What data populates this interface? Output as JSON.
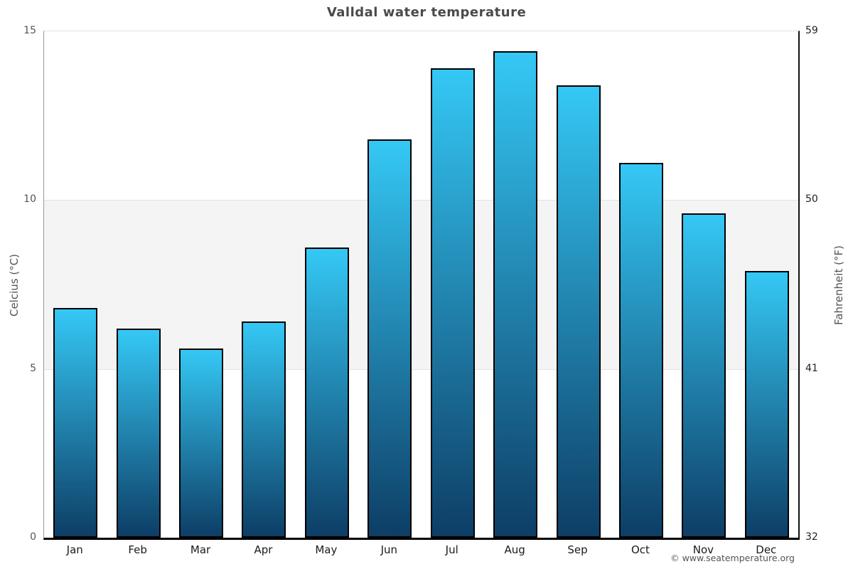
{
  "title": "Valldal water temperature",
  "footer": "© www.seatemperature.org",
  "chart_data": {
    "type": "bar",
    "title": "Valldal water temperature",
    "categories": [
      "Jan",
      "Feb",
      "Mar",
      "Apr",
      "May",
      "Jun",
      "Jul",
      "Aug",
      "Sep",
      "Oct",
      "Nov",
      "Dec"
    ],
    "values": [
      6.8,
      6.2,
      5.6,
      6.4,
      8.6,
      11.8,
      13.9,
      14.4,
      13.4,
      11.1,
      9.6,
      7.9
    ],
    "unit": "°C",
    "xlabel": "",
    "ylabel_left": "Celcius (°C)",
    "ylabel_right": "Fahrenheit (°F)",
    "ylim": [
      0,
      15
    ],
    "yticks_left": [
      0,
      5,
      10,
      15
    ],
    "yticks_right": [
      32,
      41,
      50,
      59
    ],
    "grid": "horizontal",
    "legend_position": "none",
    "shaded_band_celsius": {
      "from": 5,
      "to": 10
    },
    "colors": {
      "bar_gradient_top": "#35c8f5",
      "bar_gradient_bottom": "#0d3e66",
      "bar_border": "#000000",
      "band_fill": "#f4f4f4",
      "gridline": "#e2e2e2",
      "title_text": "#4a4a4a",
      "tick_text_left": "#555555",
      "tick_text_right": "#222222",
      "month_text": "#1a1a1a",
      "footer_text": "#555555",
      "axis_left_line": "#9a9a9a",
      "axis_right_line": "#111111",
      "axis_bottom_line": "#000000"
    }
  }
}
